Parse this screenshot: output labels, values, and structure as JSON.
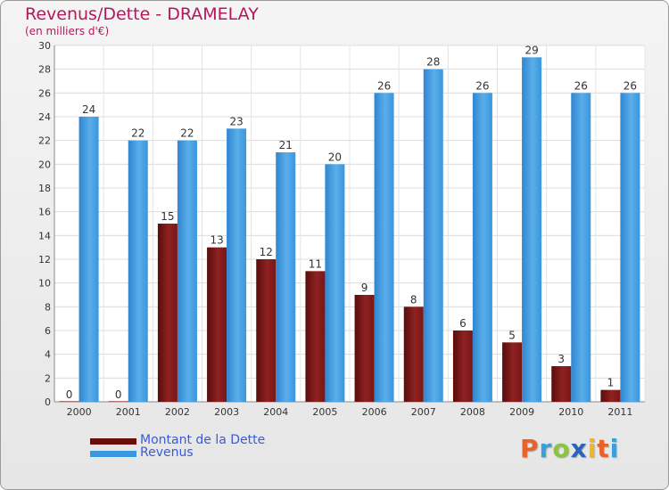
{
  "header": {
    "title": "Revenus/Dette - DRAMELAY",
    "subtitle": "(en milliers d'€)"
  },
  "chart_data": {
    "type": "bar",
    "categories": [
      "2000",
      "2001",
      "2002",
      "2003",
      "2004",
      "2005",
      "2006",
      "2007",
      "2008",
      "2009",
      "2010",
      "2011"
    ],
    "series": [
      {
        "name": "Montant de la Dette",
        "values": [
          0,
          0,
          15,
          13,
          12,
          11,
          9,
          8,
          6,
          5,
          3,
          1
        ],
        "color": "#7a1414"
      },
      {
        "name": "Revenus",
        "values": [
          24,
          22,
          22,
          23,
          21,
          20,
          26,
          28,
          26,
          29,
          26,
          26
        ],
        "color": "#3a98e0"
      }
    ],
    "ylim": [
      0,
      30
    ],
    "yticks": [
      0,
      2,
      4,
      6,
      8,
      10,
      12,
      14,
      16,
      18,
      20,
      22,
      24,
      26,
      28,
      30
    ],
    "grid": true,
    "legend_position": "bottom-left"
  },
  "legend": {
    "items": [
      {
        "label": "Montant de la Dette",
        "color": "#6b0d0d"
      },
      {
        "label": "Revenus",
        "color": "#3a98e0"
      }
    ]
  },
  "logo": {
    "letters": [
      "P",
      "r",
      "o",
      "x",
      "i",
      "t",
      "i"
    ],
    "colors": [
      "#e8622a",
      "#3aa0dc",
      "#8bc43f",
      "#2b63b8",
      "#f2b61f",
      "#e8622a",
      "#3aa0dc"
    ]
  }
}
